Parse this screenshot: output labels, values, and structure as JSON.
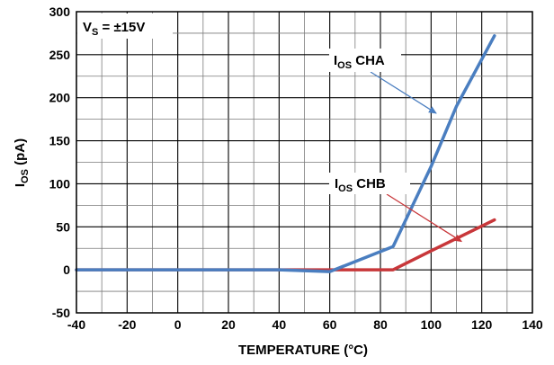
{
  "chart_data": {
    "type": "line",
    "xlabel": "TEMPERATURE (°C)",
    "ylabel_main": "I",
    "ylabel_sub": "OS",
    "ylabel_tail": " (pA)",
    "xlim": [
      -40,
      140
    ],
    "ylim": [
      -50,
      300
    ],
    "x_ticks": [
      -40,
      -20,
      0,
      20,
      40,
      60,
      80,
      100,
      120,
      140
    ],
    "y_ticks": [
      -50,
      0,
      50,
      100,
      150,
      200,
      250,
      300
    ],
    "x_tick_labels": [
      "-40",
      "-20",
      "0",
      "20",
      "40",
      "60",
      "80",
      "100",
      "120",
      "140"
    ],
    "y_tick_labels": [
      "-50",
      "0",
      "50",
      "100",
      "150",
      "200",
      "250",
      "300"
    ],
    "grid": true,
    "minor_grid_step": {
      "x": 10,
      "y": 25
    },
    "series": [
      {
        "name": "IOS CHA",
        "label_main": "I",
        "label_sub": "OS",
        "label_tail": " CHA",
        "color": "#4a7ec0",
        "x": [
          -40,
          -20,
          0,
          20,
          40,
          60,
          85,
          100,
          110,
          125
        ],
        "y": [
          0,
          0,
          0,
          0,
          0,
          -2,
          27,
          120,
          190,
          272
        ]
      },
      {
        "name": "IOS CHB",
        "label_main": "I",
        "label_sub": "OS",
        "label_tail": " CHB",
        "color": "#c8373a",
        "x": [
          -40,
          -20,
          0,
          20,
          40,
          60,
          85,
          100,
          125
        ],
        "y": [
          0,
          0,
          0,
          0,
          0,
          0,
          0,
          22,
          58
        ]
      }
    ],
    "annotations": {
      "vs_main": "V",
      "vs_sub": "S",
      "vs_tail": " = ±15V"
    }
  }
}
